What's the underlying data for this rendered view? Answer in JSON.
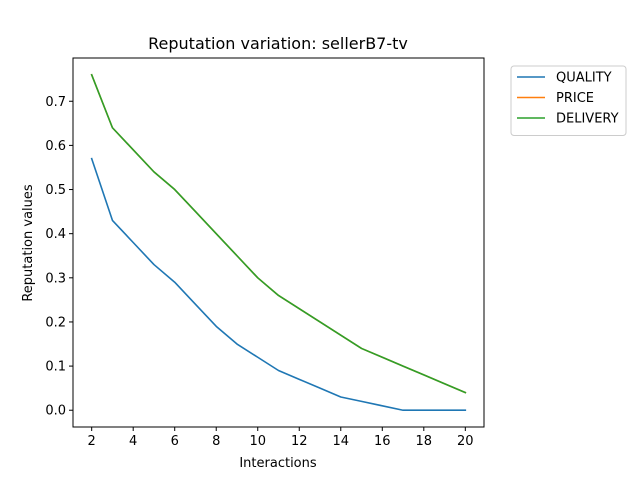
{
  "chart_data": {
    "type": "line",
    "title": "Reputation variation: sellerB7-tv",
    "xlabel": "Interactions",
    "ylabel": "Reputation values",
    "xlim": [
      1.1,
      20.9
    ],
    "ylim": [
      -0.038,
      0.798
    ],
    "xticks": [
      2,
      4,
      6,
      8,
      10,
      12,
      14,
      16,
      18,
      20
    ],
    "yticks": [
      0.0,
      0.1,
      0.2,
      0.3,
      0.4,
      0.5,
      0.6,
      0.7
    ],
    "x": [
      2,
      3,
      4,
      5,
      6,
      7,
      8,
      9,
      10,
      11,
      12,
      13,
      14,
      15,
      16,
      17,
      18,
      19,
      20
    ],
    "series": [
      {
        "name": "QUALITY",
        "color": "#1f77b4",
        "values": [
          0.57,
          0.43,
          0.38,
          0.33,
          0.29,
          0.24,
          0.19,
          0.15,
          0.12,
          0.09,
          0.07,
          0.05,
          0.03,
          0.02,
          0.01,
          0.0,
          0.0,
          0.0,
          0.0
        ]
      },
      {
        "name": "PRICE",
        "color": "#ff7f0e",
        "values": [
          0.76,
          0.64,
          0.59,
          0.54,
          0.5,
          0.45,
          0.4,
          0.35,
          0.3,
          0.26,
          0.23,
          0.2,
          0.17,
          0.14,
          0.12,
          0.1,
          0.08,
          0.06,
          0.04
        ]
      },
      {
        "name": "DELIVERY",
        "color": "#2ca02c",
        "values": [
          0.76,
          0.64,
          0.59,
          0.54,
          0.5,
          0.45,
          0.4,
          0.35,
          0.3,
          0.26,
          0.23,
          0.2,
          0.17,
          0.14,
          0.12,
          0.1,
          0.08,
          0.06,
          0.04
        ]
      }
    ],
    "grid": false,
    "legend_position": "outside-top-right"
  }
}
